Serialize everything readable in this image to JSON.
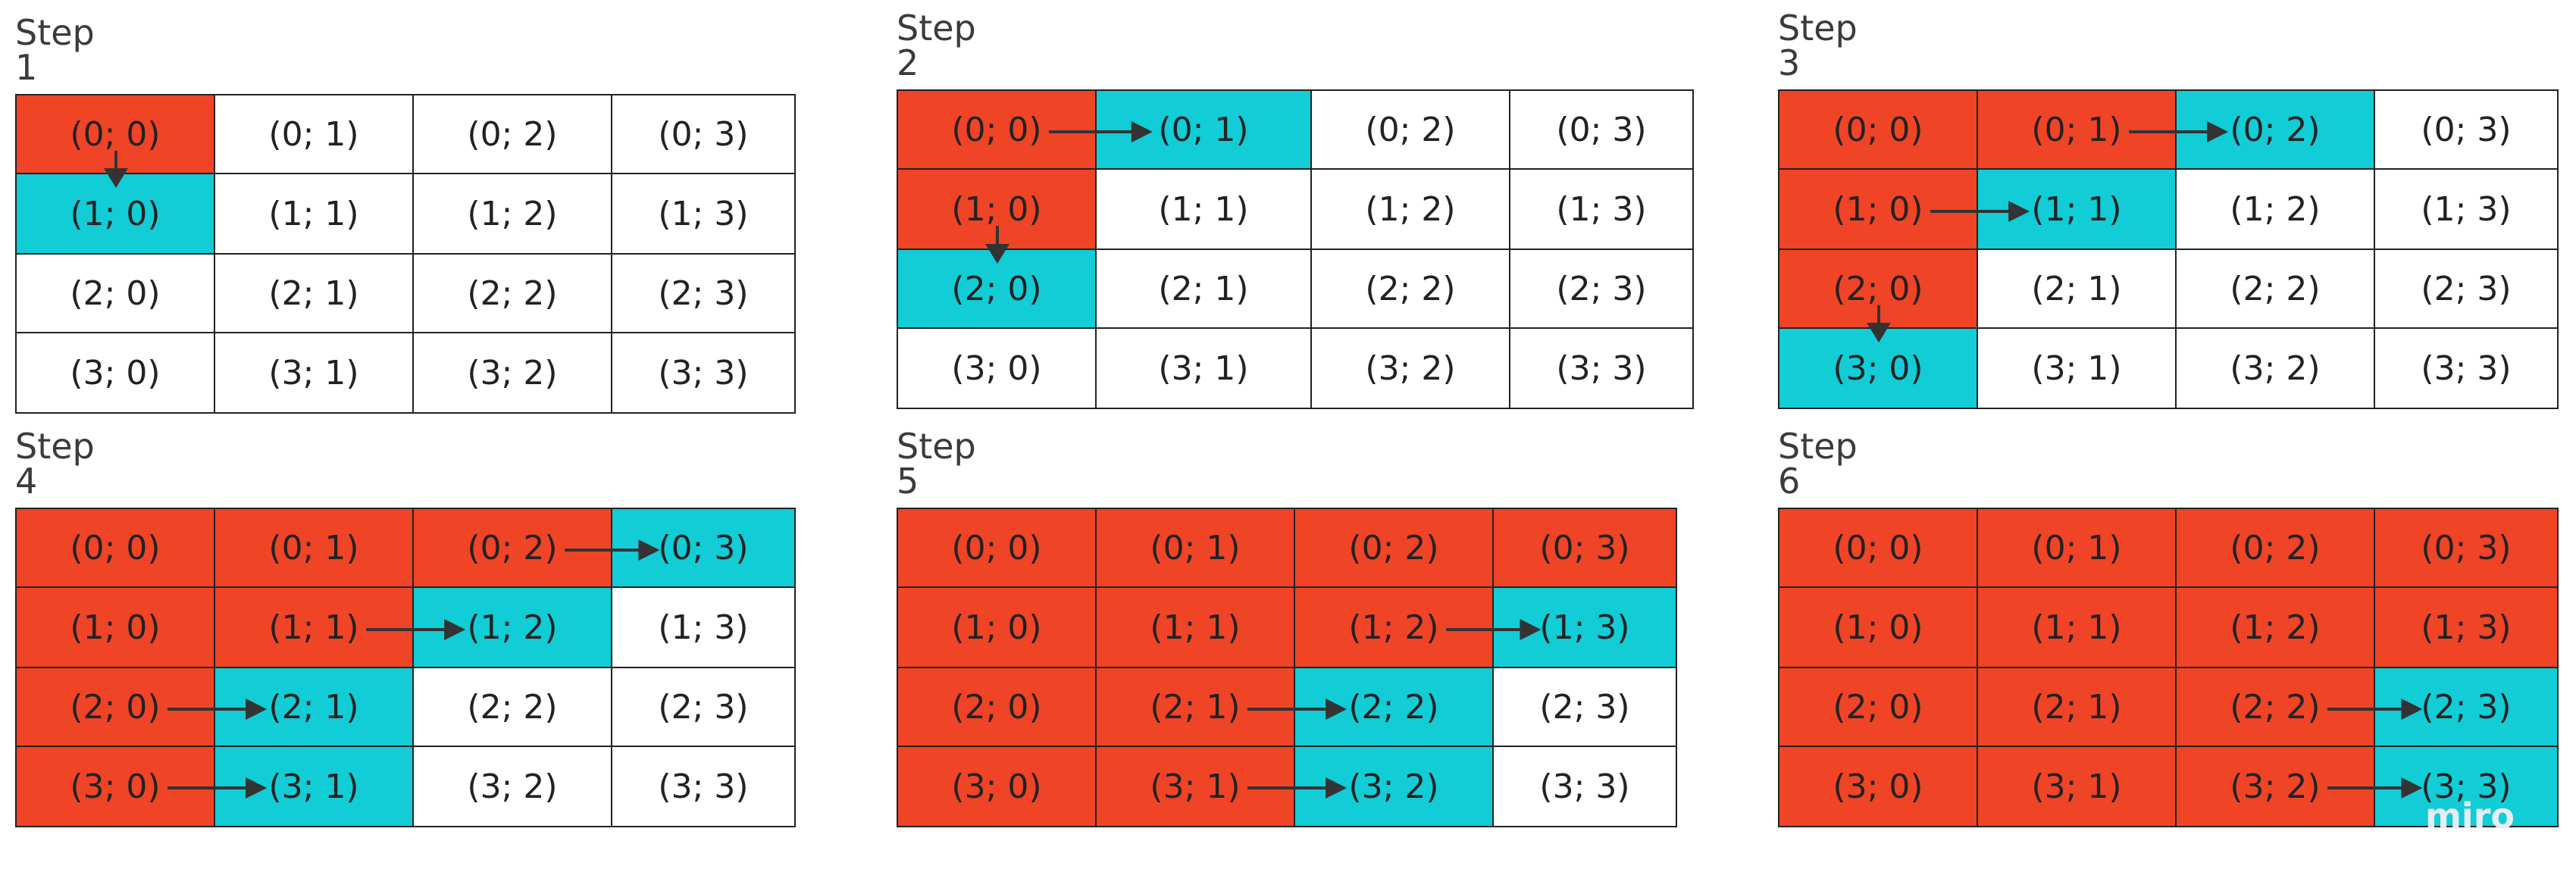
{
  "colors": {
    "visited": "#f04426",
    "current": "#12ccd6",
    "unvisited": "#ffffff",
    "arrow": "#333333",
    "border": "#222222"
  },
  "steps": [
    {
      "title": "Step 1",
      "cells": [
        [
          "(0; 0)",
          "(0; 1)",
          "(0; 2)",
          "(0; 3)"
        ],
        [
          "(1; 0)",
          "(1; 1)",
          "(1; 2)",
          "(1; 3)"
        ],
        [
          "(2; 0)",
          "(2; 1)",
          "(2; 2)",
          "(2; 3)"
        ],
        [
          "(3; 0)",
          "(3; 1)",
          "(3; 2)",
          "(3; 3)"
        ]
      ],
      "states": [
        [
          "visited",
          "unvisited",
          "unvisited",
          "unvisited"
        ],
        [
          "current",
          "unvisited",
          "unvisited",
          "unvisited"
        ],
        [
          "unvisited",
          "unvisited",
          "unvisited",
          "unvisited"
        ],
        [
          "unvisited",
          "unvisited",
          "unvisited",
          "unvisited"
        ]
      ],
      "arrows": [
        {
          "from": [
            0,
            0
          ],
          "to": [
            1,
            0
          ]
        }
      ]
    },
    {
      "title": "Step 2",
      "cells": [
        [
          "(0; 0)",
          "(0; 1)",
          "(0; 2)",
          "(0; 3)"
        ],
        [
          "(1; 0)",
          "(1; 1)",
          "(1; 2)",
          "(1; 3)"
        ],
        [
          "(2; 0)",
          "(2; 1)",
          "(2; 2)",
          "(2; 3)"
        ],
        [
          "(3; 0)",
          "(3; 1)",
          "(3; 2)",
          "(3; 3)"
        ]
      ],
      "states": [
        [
          "visited",
          "current",
          "unvisited",
          "unvisited"
        ],
        [
          "visited",
          "unvisited",
          "unvisited",
          "unvisited"
        ],
        [
          "current",
          "unvisited",
          "unvisited",
          "unvisited"
        ],
        [
          "unvisited",
          "unvisited",
          "unvisited",
          "unvisited"
        ]
      ],
      "arrows": [
        {
          "from": [
            0,
            0
          ],
          "to": [
            0,
            1
          ]
        },
        {
          "from": [
            1,
            0
          ],
          "to": [
            2,
            0
          ]
        }
      ]
    },
    {
      "title": "Step 3",
      "cells": [
        [
          "(0; 0)",
          "(0; 1)",
          "(0; 2)",
          "(0; 3)"
        ],
        [
          "(1; 0)",
          "(1; 1)",
          "(1; 2)",
          "(1; 3)"
        ],
        [
          "(2; 0)",
          "(2; 1)",
          "(2; 2)",
          "(2; 3)"
        ],
        [
          "(3; 0)",
          "(3; 1)",
          "(3; 2)",
          "(3; 3)"
        ]
      ],
      "states": [
        [
          "visited",
          "visited",
          "current",
          "unvisited"
        ],
        [
          "visited",
          "current",
          "unvisited",
          "unvisited"
        ],
        [
          "visited",
          "unvisited",
          "unvisited",
          "unvisited"
        ],
        [
          "current",
          "unvisited",
          "unvisited",
          "unvisited"
        ]
      ],
      "arrows": [
        {
          "from": [
            0,
            1
          ],
          "to": [
            0,
            2
          ]
        },
        {
          "from": [
            1,
            0
          ],
          "to": [
            1,
            1
          ]
        },
        {
          "from": [
            2,
            0
          ],
          "to": [
            3,
            0
          ]
        }
      ]
    },
    {
      "title": "Step 4",
      "cells": [
        [
          "(0; 0)",
          "(0; 1)",
          "(0; 2)",
          "(0; 3)"
        ],
        [
          "(1; 0)",
          "(1; 1)",
          "(1; 2)",
          "(1; 3)"
        ],
        [
          "(2; 0)",
          "(2; 1)",
          "(2; 2)",
          "(2; 3)"
        ],
        [
          "(3; 0)",
          "(3; 1)",
          "(3; 2)",
          "(3; 3)"
        ]
      ],
      "states": [
        [
          "visited",
          "visited",
          "visited",
          "current"
        ],
        [
          "visited",
          "visited",
          "current",
          "unvisited"
        ],
        [
          "visited",
          "current",
          "unvisited",
          "unvisited"
        ],
        [
          "visited",
          "current",
          "unvisited",
          "unvisited"
        ]
      ],
      "arrows": [
        {
          "from": [
            0,
            2
          ],
          "to": [
            0,
            3
          ]
        },
        {
          "from": [
            1,
            1
          ],
          "to": [
            1,
            2
          ]
        },
        {
          "from": [
            2,
            0
          ],
          "to": [
            2,
            1
          ]
        },
        {
          "from": [
            3,
            0
          ],
          "to": [
            3,
            1
          ]
        }
      ]
    },
    {
      "title": "Step 5",
      "cells": [
        [
          "(0; 0)",
          "(0; 1)",
          "(0; 2)",
          "(0; 3)"
        ],
        [
          "(1; 0)",
          "(1; 1)",
          "(1; 2)",
          "(1; 3)"
        ],
        [
          "(2; 0)",
          "(2; 1)",
          "(2; 2)",
          "(2; 3)"
        ],
        [
          "(3; 0)",
          "(3; 1)",
          "(3; 2)",
          "(3; 3)"
        ]
      ],
      "states": [
        [
          "visited",
          "visited",
          "visited",
          "visited"
        ],
        [
          "visited",
          "visited",
          "visited",
          "current"
        ],
        [
          "visited",
          "visited",
          "current",
          "unvisited"
        ],
        [
          "visited",
          "visited",
          "current",
          "unvisited"
        ]
      ],
      "arrows": [
        {
          "from": [
            1,
            2
          ],
          "to": [
            1,
            3
          ]
        },
        {
          "from": [
            2,
            1
          ],
          "to": [
            2,
            2
          ]
        },
        {
          "from": [
            3,
            1
          ],
          "to": [
            3,
            2
          ]
        }
      ]
    },
    {
      "title": "Step 6",
      "cells": [
        [
          "(0; 0)",
          "(0; 1)",
          "(0; 2)",
          "(0; 3)"
        ],
        [
          "(1; 0)",
          "(1; 1)",
          "(1; 2)",
          "(1; 3)"
        ],
        [
          "(2; 0)",
          "(2; 1)",
          "(2; 2)",
          "(2; 3)"
        ],
        [
          "(3; 0)",
          "(3; 1)",
          "(3; 2)",
          "(3; 3)"
        ]
      ],
      "states": [
        [
          "visited",
          "visited",
          "visited",
          "visited"
        ],
        [
          "visited",
          "visited",
          "visited",
          "visited"
        ],
        [
          "visited",
          "visited",
          "visited",
          "current"
        ],
        [
          "visited",
          "visited",
          "visited",
          "current"
        ]
      ],
      "arrows": [
        {
          "from": [
            2,
            2
          ],
          "to": [
            2,
            3
          ]
        },
        {
          "from": [
            3,
            2
          ],
          "to": [
            3,
            3
          ]
        }
      ]
    }
  ],
  "watermark": "miro"
}
